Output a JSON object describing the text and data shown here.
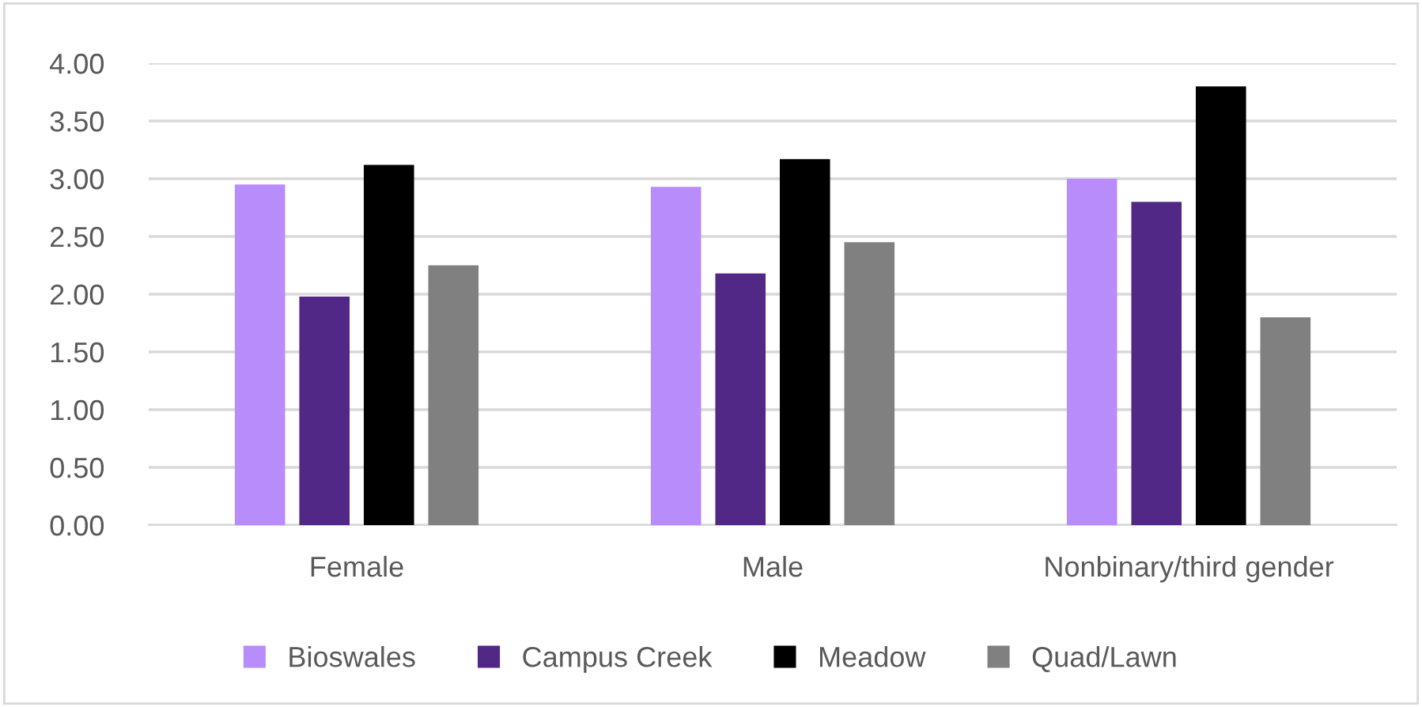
{
  "chart_data": {
    "type": "bar",
    "categories": [
      "Female",
      "Male",
      "Nonbinary/third gender"
    ],
    "series": [
      {
        "name": "Bioswales",
        "color": "#b98cfc",
        "values": [
          2.95,
          2.93,
          3.0
        ]
      },
      {
        "name": "Campus Creek",
        "color": "#522887",
        "values": [
          1.98,
          2.18,
          2.8
        ]
      },
      {
        "name": "Meadow",
        "color": "#000000",
        "values": [
          3.12,
          3.17,
          3.8
        ]
      },
      {
        "name": "Quad/Lawn",
        "color": "#808080",
        "values": [
          2.25,
          2.45,
          1.8
        ]
      }
    ],
    "ylim": [
      0,
      4
    ],
    "yticks": [
      {
        "value": 0,
        "label": "0.00"
      },
      {
        "value": 0.5,
        "label": "0.50"
      },
      {
        "value": 1,
        "label": "1.00"
      },
      {
        "value": 1.5,
        "label": "1.50"
      },
      {
        "value": 2,
        "label": "2.00"
      },
      {
        "value": 2.5,
        "label": "2.50"
      },
      {
        "value": 3,
        "label": "3.00"
      },
      {
        "value": 3.5,
        "label": "3.50"
      },
      {
        "value": 4,
        "label": "4.00"
      }
    ],
    "grid": "y",
    "legend": "bottom"
  }
}
